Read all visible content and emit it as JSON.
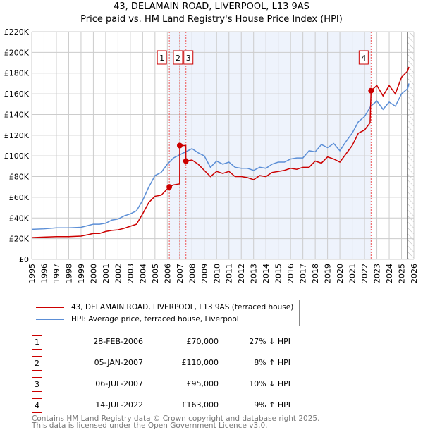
{
  "chart_data": {
    "type": "line",
    "title": "43, DELAMAIN ROAD, LIVERPOOL, L13 9AS",
    "subtitle": "Price paid vs. HM Land Registry's House Price Index (HPI)",
    "xlim": [
      1995,
      2026
    ],
    "ylim": [
      0,
      220000
    ],
    "y_ticks": [
      0,
      20000,
      40000,
      60000,
      80000,
      100000,
      120000,
      140000,
      160000,
      180000,
      200000,
      220000
    ],
    "y_tick_labels": [
      "£0",
      "£20K",
      "£40K",
      "£60K",
      "£80K",
      "£100K",
      "£120K",
      "£140K",
      "£160K",
      "£180K",
      "£200K",
      "£220K"
    ],
    "x_ticks": [
      1995,
      1996,
      1997,
      1998,
      1999,
      2000,
      2001,
      2002,
      2003,
      2004,
      2005,
      2006,
      2007,
      2008,
      2009,
      2010,
      2011,
      2012,
      2013,
      2014,
      2015,
      2016,
      2017,
      2018,
      2019,
      2020,
      2021,
      2022,
      2023,
      2024,
      2025,
      2026
    ],
    "grid": true,
    "shaded_range": [
      2006.16,
      2022.53
    ],
    "data_end": 2025.5,
    "series": [
      {
        "name": "43, DELAMAIN ROAD, LIVERPOOL, L13 9AS (terraced house)",
        "color": "#cc0000",
        "x": [
          1995,
          1996,
          1997,
          1998,
          1999,
          2000,
          2000.5,
          2001,
          2001.5,
          2002,
          2002.5,
          2003,
          2003.5,
          2004,
          2004.5,
          2005,
          2005.5,
          2006.16,
          2006.5,
          2007.0,
          2007.01,
          2007.5,
          2007.51,
          2008,
          2008.5,
          2009,
          2009.5,
          2010,
          2010.5,
          2011,
          2011.5,
          2012,
          2012.5,
          2013,
          2013.5,
          2014,
          2014.5,
          2015,
          2015.5,
          2016,
          2016.5,
          2017,
          2017.5,
          2018,
          2018.5,
          2019,
          2019.5,
          2020,
          2020.5,
          2021,
          2021.5,
          2022,
          2022.45,
          2022.53,
          2023,
          2023.5,
          2024,
          2024.5,
          2025,
          2025.5,
          2025.6
        ],
        "y": [
          21000,
          21500,
          22000,
          22000,
          22500,
          25000,
          25000,
          27000,
          28000,
          28500,
          30000,
          32000,
          34000,
          44000,
          55000,
          61000,
          62000,
          70000,
          72000,
          73000,
          110000,
          110000,
          95000,
          96000,
          92000,
          86000,
          80000,
          85000,
          83000,
          85000,
          80000,
          80000,
          79000,
          77000,
          81000,
          80000,
          84000,
          85000,
          86000,
          88000,
          87000,
          89000,
          89000,
          95000,
          93000,
          99000,
          97000,
          94000,
          102000,
          110000,
          122000,
          125000,
          132000,
          163000,
          168000,
          158000,
          168000,
          160000,
          176000,
          182000,
          186000
        ]
      },
      {
        "name": "HPI: Average price, terraced house, Liverpool",
        "color": "#5b8ed6",
        "x": [
          1995,
          1996,
          1997,
          1998,
          1999,
          2000,
          2000.5,
          2001,
          2001.5,
          2002,
          2002.5,
          2003,
          2003.5,
          2004,
          2004.5,
          2005,
          2005.5,
          2006,
          2006.5,
          2007,
          2007.5,
          2008,
          2008.5,
          2009,
          2009.5,
          2010,
          2010.5,
          2011,
          2011.5,
          2012,
          2012.5,
          2013,
          2013.5,
          2014,
          2014.5,
          2015,
          2015.5,
          2016,
          2016.5,
          2017,
          2017.5,
          2018,
          2018.5,
          2019,
          2019.5,
          2020,
          2020.5,
          2021,
          2021.5,
          2022,
          2022.5,
          2023,
          2023.5,
          2024,
          2024.5,
          2025,
          2025.5,
          2025.6
        ],
        "y": [
          29000,
          29500,
          30500,
          30500,
          31000,
          34000,
          34000,
          35000,
          38000,
          39000,
          42000,
          44000,
          47000,
          57000,
          70000,
          81000,
          84000,
          92000,
          98000,
          101000,
          104000,
          107000,
          103000,
          100000,
          89000,
          95000,
          92000,
          94000,
          89000,
          88000,
          88000,
          86000,
          89000,
          88000,
          92000,
          94000,
          94000,
          97000,
          98000,
          98000,
          105000,
          104000,
          111000,
          108000,
          112000,
          105000,
          114000,
          122000,
          133000,
          138000,
          148000,
          153000,
          145000,
          152000,
          148000,
          160000,
          165000,
          170000
        ]
      }
    ],
    "sales": [
      {
        "label": "1",
        "x": 2006.16,
        "y": 70000
      },
      {
        "label": "2",
        "x": 2007.01,
        "y": 110000
      },
      {
        "label": "3",
        "x": 2007.51,
        "y": 95000
      },
      {
        "label": "4",
        "x": 2022.53,
        "y": 163000
      }
    ]
  },
  "legend": {
    "items": [
      "43, DELAMAIN ROAD, LIVERPOOL, L13 9AS (terraced house)",
      "HPI: Average price, terraced house, Liverpool"
    ]
  },
  "table": [
    {
      "num": "1",
      "date": "28-FEB-2006",
      "price": "£70,000",
      "delta": "27% ↓ HPI"
    },
    {
      "num": "2",
      "date": "05-JAN-2007",
      "price": "£110,000",
      "delta": "8% ↑ HPI"
    },
    {
      "num": "3",
      "date": "06-JUL-2007",
      "price": "£95,000",
      "delta": "10% ↓ HPI"
    },
    {
      "num": "4",
      "date": "14-JUL-2022",
      "price": "£163,000",
      "delta": "9% ↑ HPI"
    }
  ],
  "footer": {
    "line1": "Contains HM Land Registry data © Crown copyright and database right 2025.",
    "line2": "This data is licensed under the Open Government Licence v3.0."
  }
}
